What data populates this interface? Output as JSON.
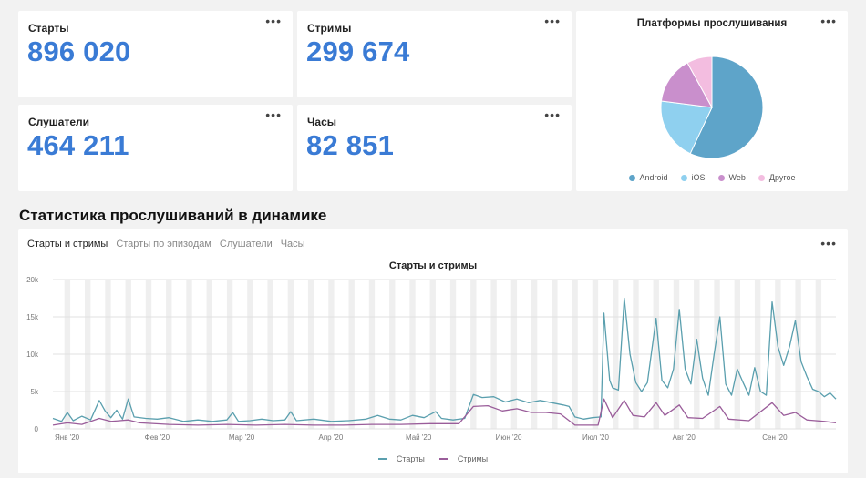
{
  "metrics": {
    "starts": {
      "label": "Старты",
      "value": "896 020"
    },
    "streams": {
      "label": "Стримы",
      "value": "299 674"
    },
    "listeners": {
      "label": "Слушатели",
      "value": "464 211"
    },
    "hours": {
      "label": "Часы",
      "value": "82 851"
    }
  },
  "more_label": "•••",
  "pie": {
    "title": "Платформы прослушивания",
    "legend": [
      {
        "label": "Android",
        "color": "#5ea4c9"
      },
      {
        "label": "iOS",
        "color": "#8fd0ef"
      },
      {
        "label": "Web",
        "color": "#c98fcc"
      },
      {
        "label": "Другое",
        "color": "#f3bde0"
      }
    ]
  },
  "section_title": "Статистика прослушиваний в динамике",
  "tabs": [
    {
      "label": "Старты и стримы",
      "active": true
    },
    {
      "label": "Старты по эпизодам",
      "active": false
    },
    {
      "label": "Слушатели",
      "active": false
    },
    {
      "label": "Часы",
      "active": false
    }
  ],
  "chart_data": [
    {
      "type": "pie",
      "title": "Платформы прослушивания",
      "categories": [
        "Android",
        "iOS",
        "Web",
        "Другое"
      ],
      "values": [
        57,
        20,
        15,
        8
      ],
      "colors": [
        "#5ea4c9",
        "#8fd0ef",
        "#c98fcc",
        "#f3bde0"
      ],
      "legend_position": "bottom"
    },
    {
      "type": "line",
      "title": "Старты и стримы",
      "ylim": [
        0,
        20000
      ],
      "yticks": [
        0,
        5000,
        10000,
        15000,
        20000
      ],
      "ytick_labels": [
        "0",
        "5k",
        "10k",
        "15k",
        "20k"
      ],
      "xlim": [
        0,
        270
      ],
      "xticks": [
        0,
        31,
        60,
        91,
        121,
        152,
        182,
        213,
        244
      ],
      "xtick_labels": [
        "Янв '20",
        "Фев '20",
        "Мар '20",
        "Апр '20",
        "Май '20",
        "Июн '20",
        "Июл '20",
        "Авг '20",
        "Сен '20"
      ],
      "grid": true,
      "legend_position": "bottom",
      "series": [
        {
          "name": "Старты",
          "color": "#5a9fae",
          "points": [
            [
              0,
              1400
            ],
            [
              3,
              1000
            ],
            [
              5,
              2200
            ],
            [
              7,
              1100
            ],
            [
              10,
              1700
            ],
            [
              13,
              1200
            ],
            [
              16,
              3800
            ],
            [
              18,
              2400
            ],
            [
              20,
              1500
            ],
            [
              22,
              2500
            ],
            [
              24,
              1300
            ],
            [
              26,
              4000
            ],
            [
              28,
              1600
            ],
            [
              32,
              1400
            ],
            [
              36,
              1300
            ],
            [
              40,
              1500
            ],
            [
              45,
              1000
            ],
            [
              50,
              1200
            ],
            [
              55,
              1000
            ],
            [
              60,
              1200
            ],
            [
              62,
              2200
            ],
            [
              64,
              1000
            ],
            [
              68,
              1100
            ],
            [
              72,
              1300
            ],
            [
              76,
              1100
            ],
            [
              80,
              1200
            ],
            [
              82,
              2300
            ],
            [
              84,
              1100
            ],
            [
              90,
              1300
            ],
            [
              96,
              1000
            ],
            [
              102,
              1100
            ],
            [
              108,
              1300
            ],
            [
              112,
              1800
            ],
            [
              116,
              1300
            ],
            [
              120,
              1200
            ],
            [
              124,
              1800
            ],
            [
              128,
              1500
            ],
            [
              132,
              2300
            ],
            [
              134,
              1400
            ],
            [
              138,
              1200
            ],
            [
              142,
              1400
            ],
            [
              145,
              4600
            ],
            [
              148,
              4200
            ],
            [
              152,
              4300
            ],
            [
              156,
              3600
            ],
            [
              160,
              4000
            ],
            [
              164,
              3500
            ],
            [
              168,
              3800
            ],
            [
              172,
              3500
            ],
            [
              176,
              3200
            ],
            [
              178,
              3000
            ],
            [
              180,
              1600
            ],
            [
              183,
              1300
            ],
            [
              186,
              1500
            ],
            [
              189,
              1600
            ],
            [
              190,
              15500
            ],
            [
              192,
              6500
            ],
            [
              193,
              5500
            ],
            [
              195,
              5200
            ],
            [
              197,
              17500
            ],
            [
              199,
              10000
            ],
            [
              201,
              6200
            ],
            [
              203,
              5000
            ],
            [
              205,
              6200
            ],
            [
              208,
              14800
            ],
            [
              210,
              6500
            ],
            [
              212,
              5500
            ],
            [
              214,
              8000
            ],
            [
              216,
              16000
            ],
            [
              218,
              8000
            ],
            [
              220,
              6000
            ],
            [
              222,
              12000
            ],
            [
              224,
              6800
            ],
            [
              226,
              4500
            ],
            [
              228,
              10000
            ],
            [
              230,
              15000
            ],
            [
              232,
              6000
            ],
            [
              234,
              4500
            ],
            [
              236,
              8000
            ],
            [
              238,
              6200
            ],
            [
              240,
              4500
            ],
            [
              242,
              8200
            ],
            [
              244,
              5000
            ],
            [
              246,
              4500
            ],
            [
              248,
              17000
            ],
            [
              250,
              11000
            ],
            [
              252,
              8500
            ],
            [
              254,
              11000
            ],
            [
              256,
              14500
            ],
            [
              258,
              9000
            ],
            [
              260,
              7000
            ],
            [
              262,
              5300
            ],
            [
              264,
              5000
            ],
            [
              266,
              4300
            ],
            [
              268,
              4800
            ],
            [
              270,
              4000
            ]
          ]
        },
        {
          "name": "Стримы",
          "color": "#9a5d9a",
          "points": [
            [
              0,
              500
            ],
            [
              5,
              800
            ],
            [
              10,
              600
            ],
            [
              16,
              1400
            ],
            [
              20,
              1000
            ],
            [
              26,
              1200
            ],
            [
              30,
              800
            ],
            [
              40,
              600
            ],
            [
              50,
              500
            ],
            [
              60,
              600
            ],
            [
              70,
              500
            ],
            [
              80,
              600
            ],
            [
              90,
              500
            ],
            [
              100,
              500
            ],
            [
              110,
              600
            ],
            [
              120,
              600
            ],
            [
              130,
              700
            ],
            [
              140,
              700
            ],
            [
              145,
              3000
            ],
            [
              150,
              3100
            ],
            [
              155,
              2400
            ],
            [
              160,
              2700
            ],
            [
              165,
              2200
            ],
            [
              170,
              2200
            ],
            [
              175,
              2000
            ],
            [
              180,
              500
            ],
            [
              188,
              500
            ],
            [
              190,
              4000
            ],
            [
              193,
              1500
            ],
            [
              197,
              3800
            ],
            [
              200,
              1800
            ],
            [
              204,
              1600
            ],
            [
              208,
              3500
            ],
            [
              211,
              1800
            ],
            [
              216,
              3200
            ],
            [
              219,
              1500
            ],
            [
              224,
              1400
            ],
            [
              230,
              3000
            ],
            [
              233,
              1300
            ],
            [
              240,
              1100
            ],
            [
              248,
              3500
            ],
            [
              252,
              1800
            ],
            [
              256,
              2200
            ],
            [
              260,
              1200
            ],
            [
              266,
              1000
            ],
            [
              270,
              800
            ]
          ]
        }
      ]
    }
  ]
}
